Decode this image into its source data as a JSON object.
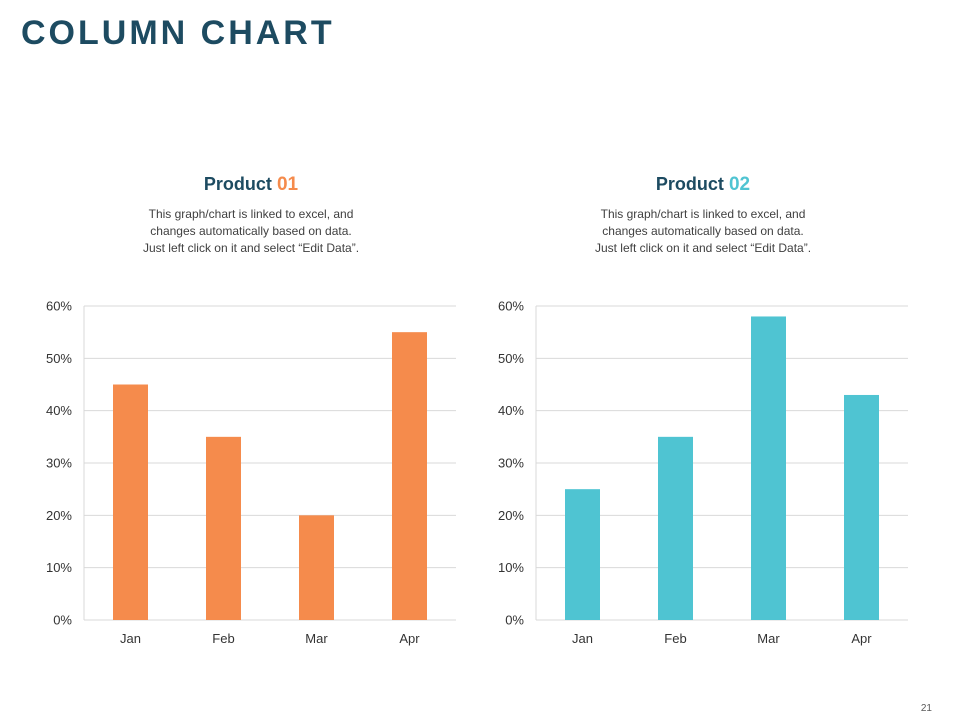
{
  "page": {
    "title": "COLUMN CHART",
    "page_number": "21"
  },
  "colors": {
    "title": "#1d4b61",
    "product_01": "#f58b4c",
    "product_02": "#4fc4d2",
    "gridline": "#d9d9d9",
    "axis_text": "#333333"
  },
  "panels": [
    {
      "heading_word": "Product",
      "heading_number": "01",
      "description_lines": [
        "This graph/chart is linked to excel, and",
        "changes automatically based on data.",
        "Just left click on it and select “Edit Data”."
      ]
    },
    {
      "heading_word": "Product",
      "heading_number": "02",
      "description_lines": [
        "This graph/chart is linked to excel, and",
        "changes automatically based on data.",
        "Just left click on it and select “Edit Data”."
      ]
    }
  ],
  "chart_data": [
    {
      "type": "bar",
      "categories": [
        "Jan",
        "Feb",
        "Mar",
        "Apr"
      ],
      "series": [
        {
          "values": [
            45,
            35,
            20,
            55
          ]
        }
      ],
      "ylim": [
        0,
        60
      ],
      "yticks": [
        0,
        10,
        20,
        30,
        40,
        50,
        60
      ],
      "ytick_labels": [
        "0%",
        "10%",
        "20%",
        "30%",
        "40%",
        "50%",
        "60%"
      ],
      "grid": true,
      "color": "#f58b4c"
    },
    {
      "type": "bar",
      "categories": [
        "Jan",
        "Feb",
        "Mar",
        "Apr"
      ],
      "series": [
        {
          "values": [
            25,
            35,
            58,
            43
          ]
        }
      ],
      "ylim": [
        0,
        60
      ],
      "yticks": [
        0,
        10,
        20,
        30,
        40,
        50,
        60
      ],
      "ytick_labels": [
        "0%",
        "10%",
        "20%",
        "30%",
        "40%",
        "50%",
        "60%"
      ],
      "grid": true,
      "color": "#4fc4d2"
    }
  ]
}
